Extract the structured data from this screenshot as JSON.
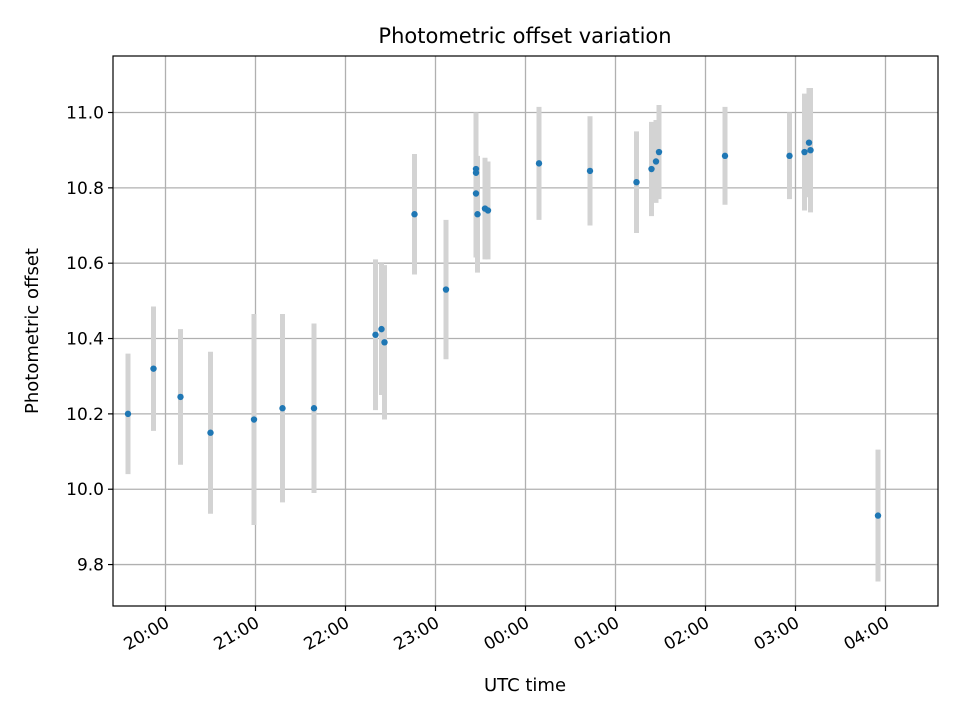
{
  "chart_data": {
    "type": "scatter",
    "title": "Photometric offset variation",
    "xlabel": "UTC time",
    "ylabel": "Photometric offset",
    "grid": true,
    "x_unit": "UTC time (HH:MM), points after 00:00 fall on the following day",
    "xlim": [
      "19:25",
      "04:35"
    ],
    "ylim": [
      9.69,
      11.15
    ],
    "x_ticks": [
      "20:00",
      "21:00",
      "22:00",
      "23:00",
      "00:00",
      "01:00",
      "02:00",
      "03:00",
      "04:00"
    ],
    "y_ticks": [
      "9.8",
      "10.0",
      "10.2",
      "10.4",
      "10.6",
      "10.8",
      "11.0"
    ],
    "colors": {
      "point": "#1f77b4",
      "errorbar": "#d3d3d3",
      "grid": "#b0b0b0"
    },
    "series": [
      {
        "points": [
          {
            "x": "19:35",
            "y": 10.2,
            "err": 0.16
          },
          {
            "x": "19:52",
            "y": 10.32,
            "err": 0.165
          },
          {
            "x": "20:10",
            "y": 10.245,
            "err": 0.18
          },
          {
            "x": "20:30",
            "y": 10.15,
            "err": 0.215
          },
          {
            "x": "20:59",
            "y": 10.185,
            "err": 0.28
          },
          {
            "x": "21:18",
            "y": 10.215,
            "err": 0.25
          },
          {
            "x": "21:39",
            "y": 10.215,
            "err": 0.225
          },
          {
            "x": "22:20",
            "y": 10.41,
            "err": 0.2
          },
          {
            "x": "22:24",
            "y": 10.425,
            "err": 0.175
          },
          {
            "x": "22:26",
            "y": 10.39,
            "err": 0.205
          },
          {
            "x": "22:46",
            "y": 10.73,
            "err": 0.16
          },
          {
            "x": "23:07",
            "y": 10.53,
            "err": 0.185
          },
          {
            "x": "23:27",
            "y": 10.85,
            "err": 0.15
          },
          {
            "x": "23:27",
            "y": 10.84,
            "err": 0.11
          },
          {
            "x": "23:27",
            "y": 10.785,
            "err": 0.17
          },
          {
            "x": "23:28",
            "y": 10.73,
            "err": 0.155
          },
          {
            "x": "23:33",
            "y": 10.745,
            "err": 0.135
          },
          {
            "x": "23:35",
            "y": 10.74,
            "err": 0.13
          },
          {
            "x": "00:09",
            "y": 10.865,
            "err": 0.15
          },
          {
            "x": "00:43",
            "y": 10.845,
            "err": 0.145
          },
          {
            "x": "01:14",
            "y": 10.815,
            "err": 0.135
          },
          {
            "x": "01:24",
            "y": 10.85,
            "err": 0.125
          },
          {
            "x": "01:27",
            "y": 10.87,
            "err": 0.11
          },
          {
            "x": "01:29",
            "y": 10.895,
            "err": 0.125
          },
          {
            "x": "02:13",
            "y": 10.885,
            "err": 0.13
          },
          {
            "x": "02:56",
            "y": 10.885,
            "err": 0.115
          },
          {
            "x": "03:06",
            "y": 10.895,
            "err": 0.155
          },
          {
            "x": "03:09",
            "y": 10.92,
            "err": 0.145
          },
          {
            "x": "03:10",
            "y": 10.9,
            "err": 0.165
          },
          {
            "x": "03:55",
            "y": 9.93,
            "err": 0.175
          }
        ]
      }
    ]
  }
}
